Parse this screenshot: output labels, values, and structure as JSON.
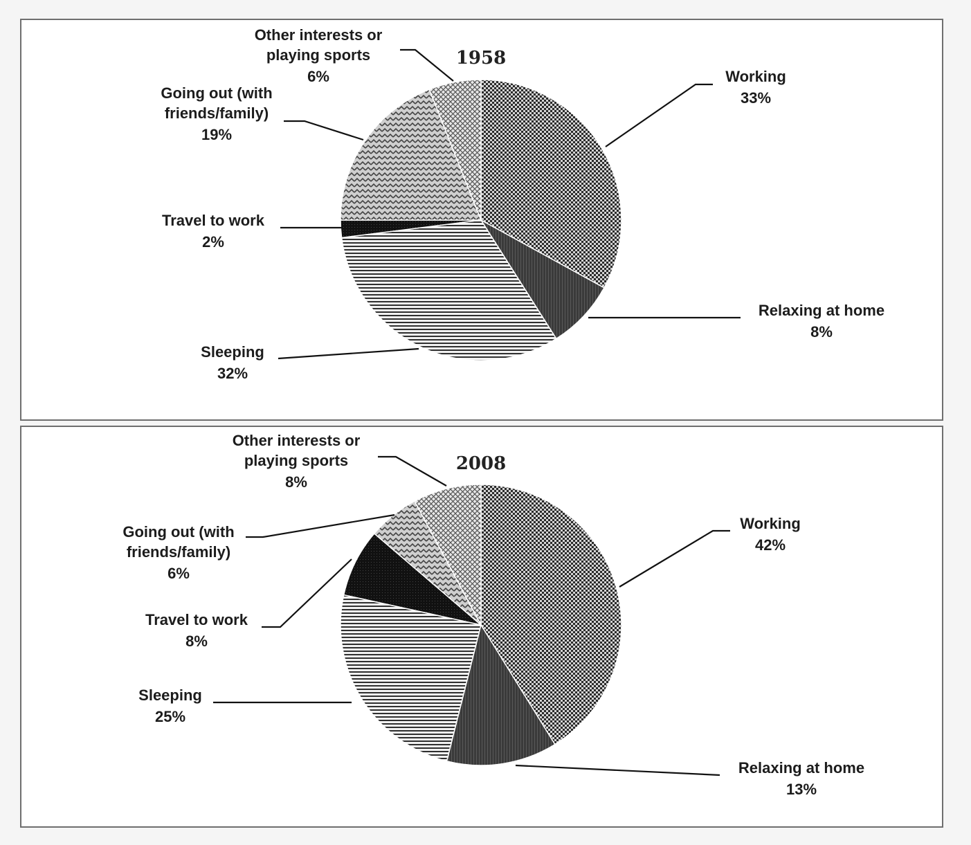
{
  "chart_data": [
    {
      "type": "pie",
      "title": "1958",
      "slices": [
        {
          "key": "working",
          "label_lines": [
            "Working"
          ],
          "value": 33,
          "value_label": "33%",
          "pattern": "checker"
        },
        {
          "key": "relaxing",
          "label_lines": [
            "Relaxing at home"
          ],
          "value": 8,
          "value_label": "8%",
          "pattern": "dark"
        },
        {
          "key": "sleeping",
          "label_lines": [
            "Sleeping"
          ],
          "value": 32,
          "value_label": "32%",
          "pattern": "hstripes"
        },
        {
          "key": "travel",
          "label_lines": [
            "Travel to work"
          ],
          "value": 2,
          "value_label": "2%",
          "pattern": "black"
        },
        {
          "key": "goingout",
          "label_lines": [
            "Going out (with",
            "friends/family)"
          ],
          "value": 19,
          "value_label": "19%",
          "pattern": "zigzag"
        },
        {
          "key": "other",
          "label_lines": [
            "Other interests or",
            "playing sports"
          ],
          "value": 6,
          "value_label": "6%",
          "pattern": "crosshatch"
        }
      ]
    },
    {
      "type": "pie",
      "title": "2008",
      "slices": [
        {
          "key": "working",
          "label_lines": [
            "Working"
          ],
          "value": 42,
          "value_label": "42%",
          "pattern": "checker"
        },
        {
          "key": "relaxing",
          "label_lines": [
            "Relaxing at home"
          ],
          "value": 13,
          "value_label": "13%",
          "pattern": "dark"
        },
        {
          "key": "sleeping",
          "label_lines": [
            "Sleeping"
          ],
          "value": 25,
          "value_label": "25%",
          "pattern": "hstripes"
        },
        {
          "key": "travel",
          "label_lines": [
            "Travel to work"
          ],
          "value": 8,
          "value_label": "8%",
          "pattern": "black"
        },
        {
          "key": "goingout",
          "label_lines": [
            "Going out (with",
            "friends/family)"
          ],
          "value": 6,
          "value_label": "6%",
          "pattern": "zigzag"
        },
        {
          "key": "other",
          "label_lines": [
            "Other interests or",
            "playing sports"
          ],
          "value": 8,
          "value_label": "8%",
          "pattern": "crosshatch"
        }
      ]
    }
  ]
}
